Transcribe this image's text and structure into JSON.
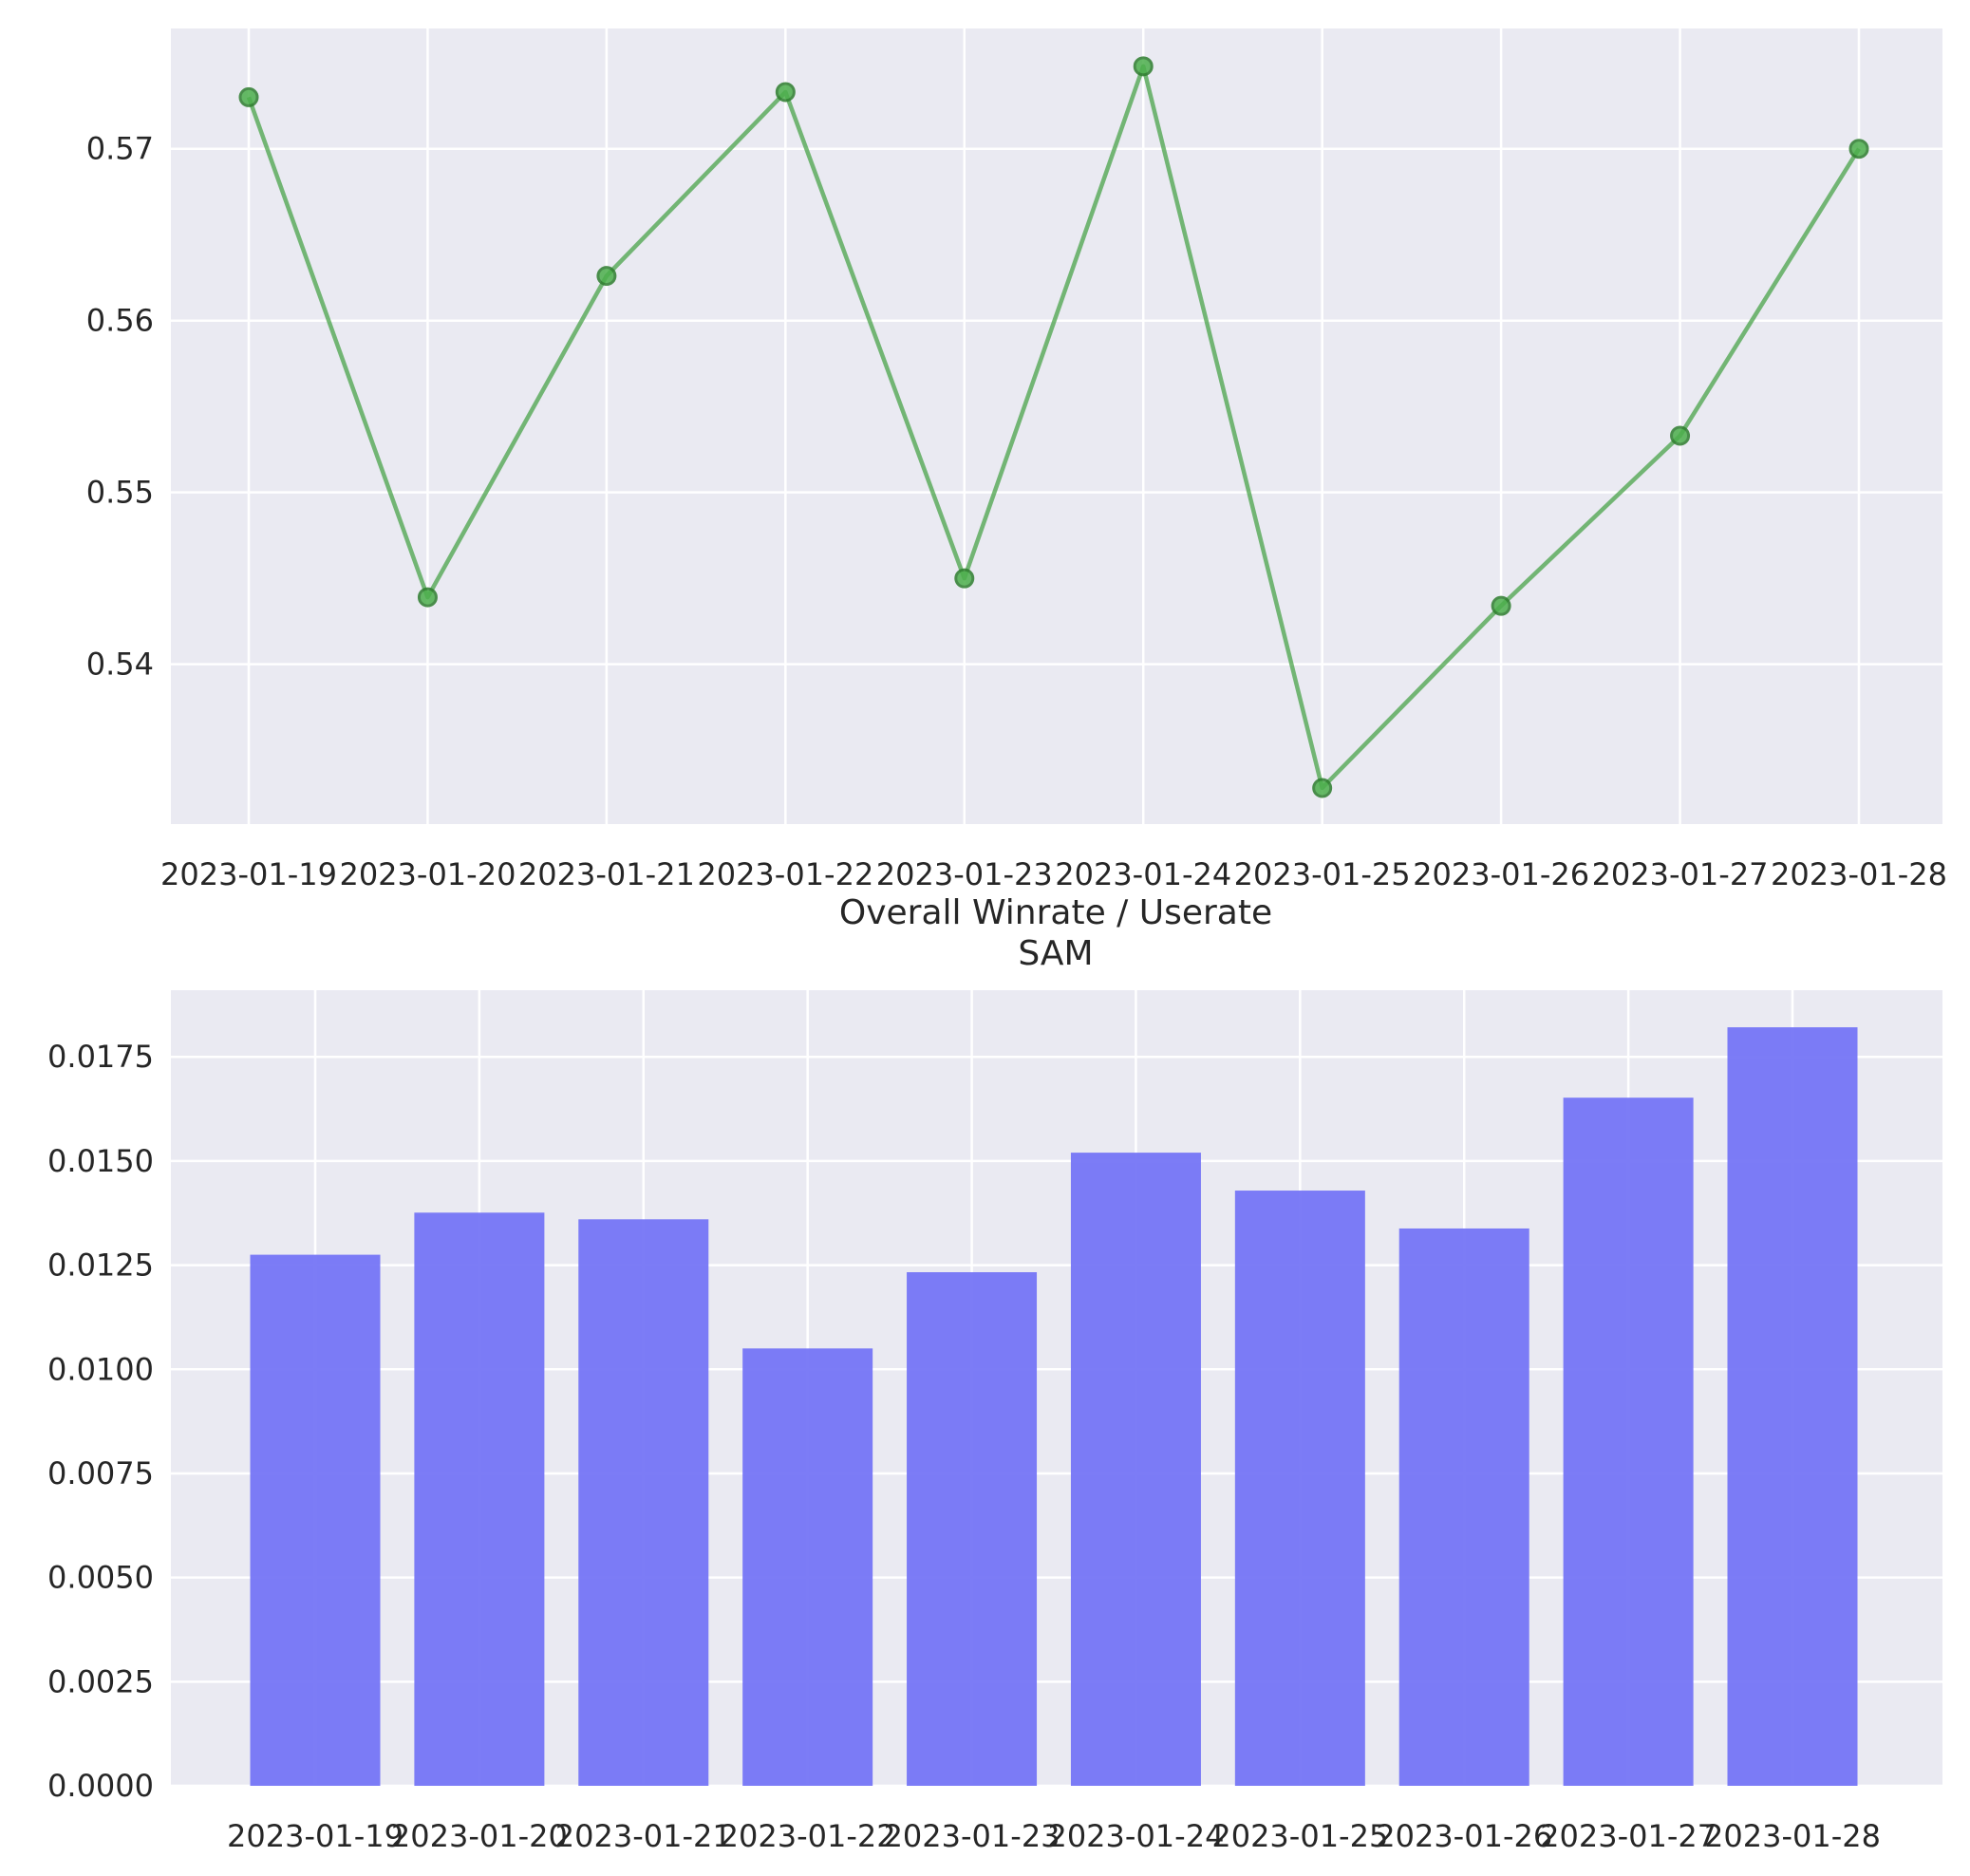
{
  "title_lines": [
    "Overall Winrate / Userate",
    "SAM"
  ],
  "colors": {
    "plot_bg": "#eaeaf2",
    "grid": "#ffffff",
    "line": "#3f9e3f",
    "marker_face": "#4caf4c",
    "marker_edge": "#2e7d2e",
    "bar": "#7575f6"
  },
  "chart_data": [
    {
      "type": "line",
      "x": [
        "2023-01-19",
        "2023-01-20",
        "2023-01-21",
        "2023-01-22",
        "2023-01-23",
        "2023-01-24",
        "2023-01-25",
        "2023-01-26",
        "2023-01-27",
        "2023-01-28"
      ],
      "values": [
        0.573,
        0.5439,
        0.5626,
        0.5733,
        0.545,
        0.5748,
        0.5328,
        0.5434,
        0.5533,
        0.57
      ],
      "yticks": [
        "0.54",
        "0.55",
        "0.56",
        "0.57"
      ],
      "ylim": [
        0.5307,
        0.577
      ],
      "grid": true
    },
    {
      "type": "bar",
      "categories": [
        "2023-01-19",
        "2023-01-20",
        "2023-01-21",
        "2023-01-22",
        "2023-01-23",
        "2023-01-24",
        "2023-01-25",
        "2023-01-26",
        "2023-01-27",
        "2023-01-28"
      ],
      "values": [
        0.01275,
        0.01376,
        0.0136,
        0.0105,
        0.01233,
        0.0152,
        0.01429,
        0.01338,
        0.01652,
        0.01821
      ],
      "yticks": [
        "0.0000",
        "0.0025",
        "0.0050",
        "0.0075",
        "0.0100",
        "0.0125",
        "0.0150",
        "0.0175"
      ],
      "ylim": [
        0,
        0.0191
      ],
      "grid": true
    }
  ]
}
